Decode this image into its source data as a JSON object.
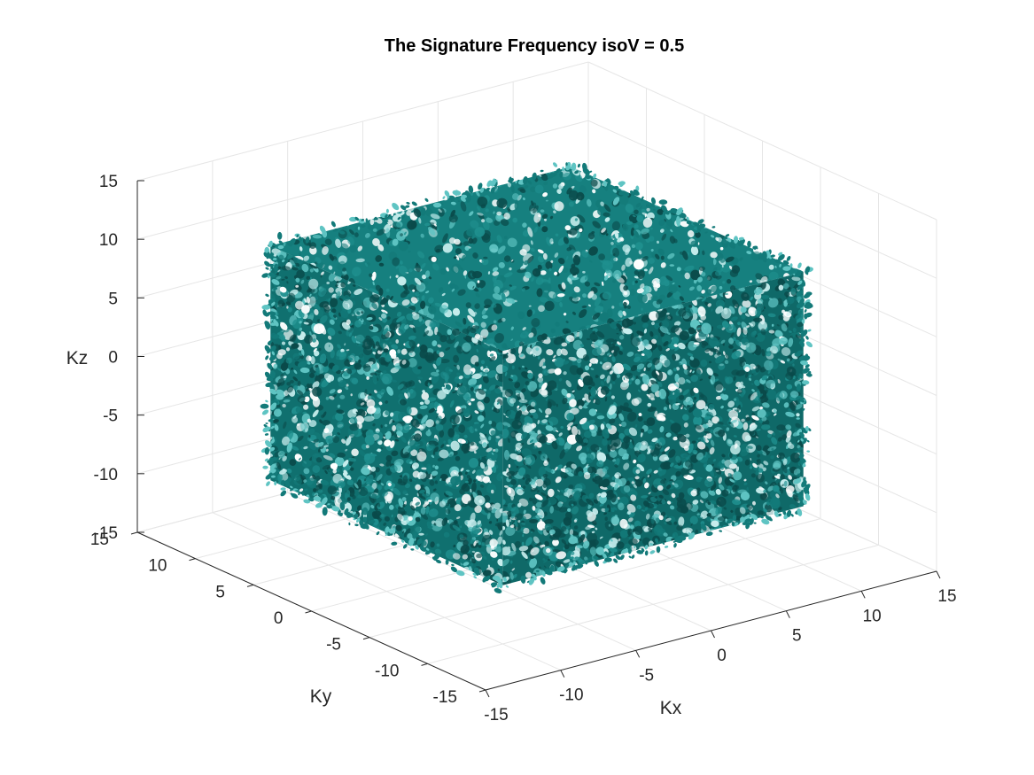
{
  "chart_data": {
    "type": "isosurface",
    "title": "The Signature Frequency isoV = 0.5",
    "xlabel": "Kx",
    "ylabel": "Ky",
    "zlabel": "Kz",
    "xlim": [
      -15,
      15
    ],
    "ylim": [
      -15,
      15
    ],
    "zlim": [
      -15,
      15
    ],
    "x_ticks": [
      -15,
      -10,
      -5,
      0,
      5,
      10,
      15
    ],
    "y_ticks": [
      -15,
      -10,
      -5,
      0,
      5,
      10,
      15
    ],
    "z_ticks": [
      -15,
      -10,
      -5,
      0,
      5,
      10,
      15
    ],
    "x_tick_labels": [
      "-15",
      "-10",
      "-5",
      "0",
      "5",
      "10",
      "15"
    ],
    "y_tick_labels": [
      "-15",
      "-10",
      "-5",
      "0",
      "5",
      "10",
      "15"
    ],
    "z_tick_labels": [
      "-15",
      "-10",
      "-5",
      "0",
      "5",
      "10",
      "15"
    ],
    "isovalue": 0.5,
    "surface_extent": {
      "x": [
        -10,
        10
      ],
      "y": [
        -10,
        10
      ],
      "z": [
        -10,
        10
      ]
    },
    "grid": true,
    "colors": {
      "surface": "#137a79",
      "surface_dark": "#0a4a4a",
      "surface_mid": "#1f8f8e",
      "surface_light": "#5fc4c3",
      "highlight": "#c8eeee",
      "grid": "#e6e6e6",
      "axis": "#262626"
    }
  }
}
